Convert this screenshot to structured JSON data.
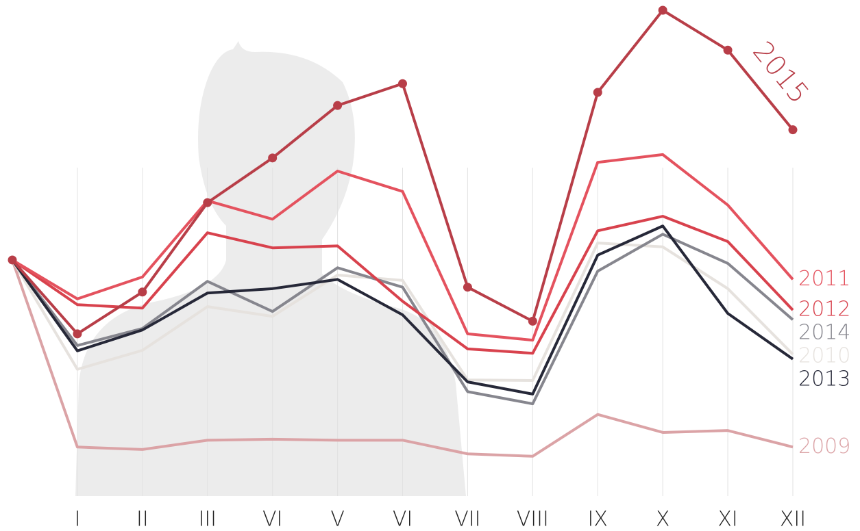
{
  "chart_data": {
    "type": "line",
    "categories": [
      null,
      "I",
      "II",
      "III",
      "VI",
      "V",
      "VI",
      "VII",
      "VIII",
      "IX",
      "X",
      "XI",
      "XII"
    ],
    "ylim": [
      0,
      100
    ],
    "grid": true,
    "series": [
      {
        "name": "2009",
        "color": "#dba3a6",
        "values": [
          48.6,
          10.1,
          9.6,
          11.5,
          11.7,
          11.5,
          11.5,
          8.7,
          8.2,
          16.8,
          13.1,
          13.5,
          10.1
        ]
      },
      {
        "name": "2010",
        "color": "#e6e2de",
        "values": [
          48.6,
          26.1,
          30.0,
          39.0,
          37.0,
          45.5,
          44.4,
          23.9,
          23.8,
          52.1,
          51.3,
          42.7,
          29.2
        ]
      },
      {
        "name": "2014",
        "color": "#86868e",
        "values": [
          48.6,
          31.0,
          34.5,
          44.2,
          38.0,
          47.0,
          43.0,
          21.5,
          19.0,
          46.3,
          53.9,
          47.9,
          36.3
        ]
      },
      {
        "name": "2013",
        "color": "#262838",
        "values": [
          48.6,
          29.9,
          34.2,
          41.8,
          42.7,
          44.6,
          37.3,
          23.5,
          21.0,
          49.6,
          55.6,
          37.6,
          28.2
        ]
      },
      {
        "name": "2012",
        "color": "#d8424d",
        "values": [
          48.6,
          39.4,
          38.7,
          54.2,
          51.1,
          51.5,
          40.1,
          30.3,
          29.4,
          54.6,
          57.6,
          52.4,
          38.3
        ]
      },
      {
        "name": "2011",
        "color": "#e4525e",
        "values": [
          48.6,
          40.6,
          45.1,
          60.8,
          57.0,
          66.9,
          62.7,
          33.4,
          32.1,
          68.7,
          70.3,
          59.9,
          44.6
        ]
      },
      {
        "name": "2015",
        "color": "#b83e48",
        "markers": true,
        "values": [
          48.6,
          33.4,
          42.0,
          60.4,
          69.6,
          80.4,
          84.9,
          43.0,
          36.0,
          83.1,
          100,
          91.8,
          75.4
        ]
      }
    ]
  }
}
